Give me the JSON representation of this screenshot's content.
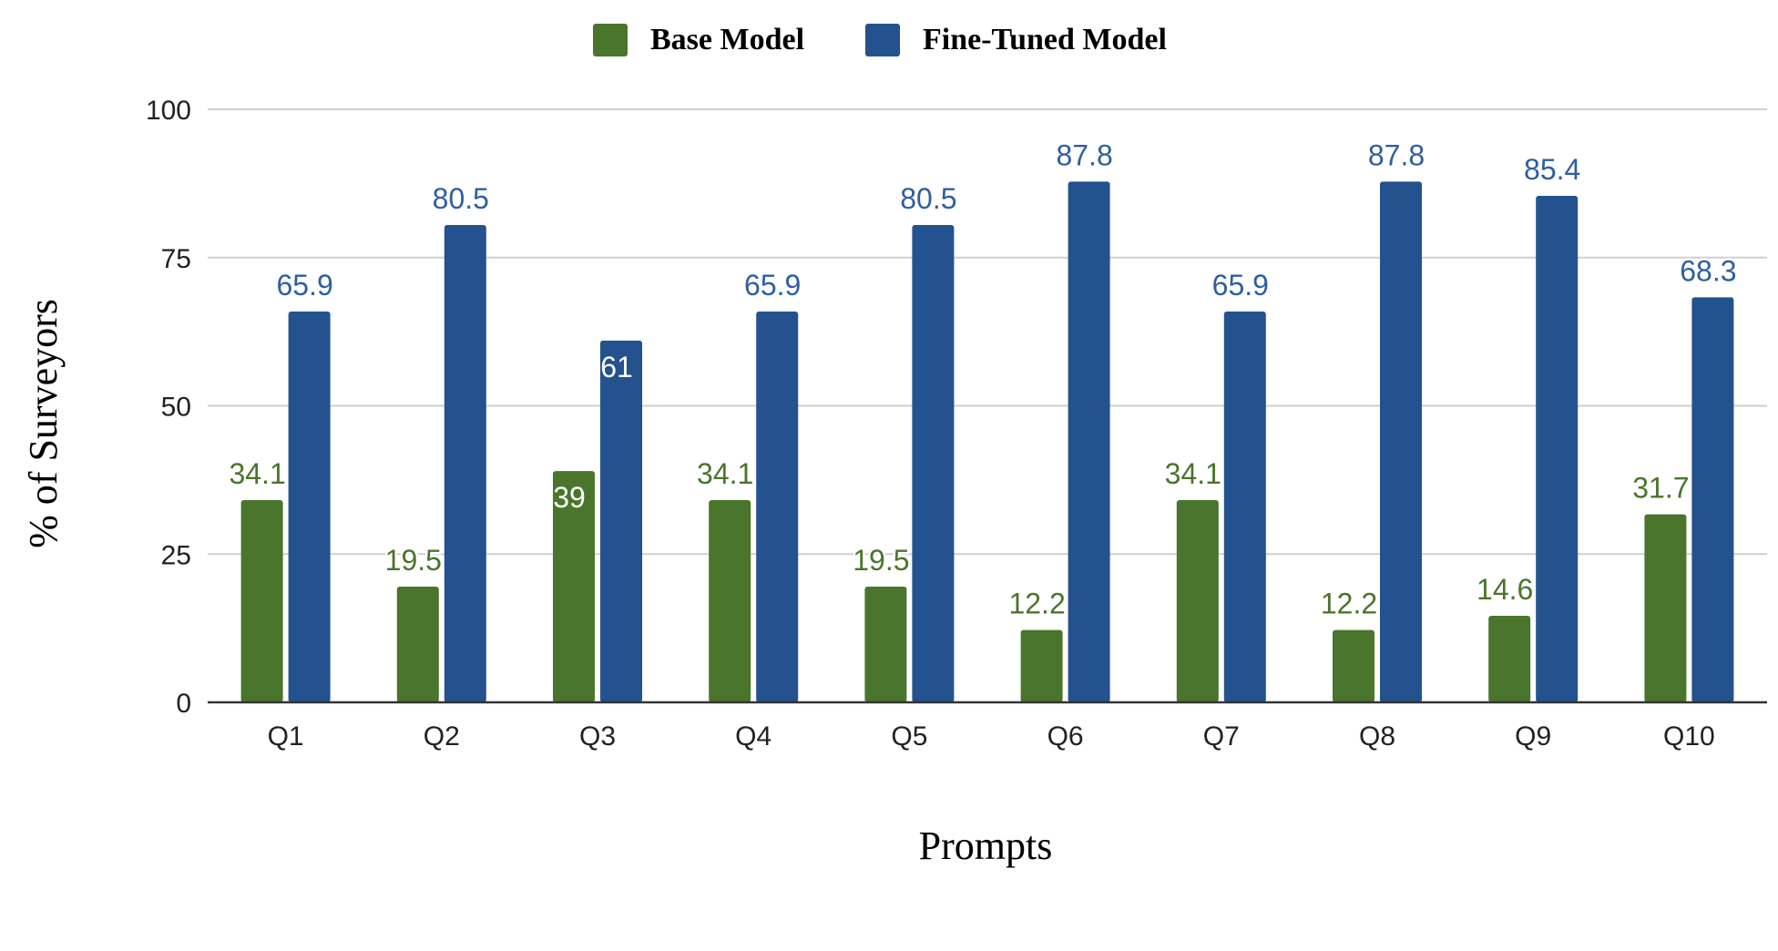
{
  "chart_data": {
    "type": "bar",
    "categories": [
      "Q1",
      "Q2",
      "Q3",
      "Q4",
      "Q5",
      "Q6",
      "Q7",
      "Q8",
      "Q9",
      "Q10"
    ],
    "series": [
      {
        "name": "Base Model",
        "color": "#4a752c",
        "label_color": "#4a752c",
        "values": [
          34.1,
          19.5,
          39,
          34.1,
          19.5,
          12.2,
          34.1,
          12.2,
          14.6,
          31.7
        ],
        "labels": [
          "34.1",
          "19.5",
          "39",
          "34.1",
          "19.5",
          "12.2",
          "34.1",
          "12.2",
          "14.6",
          "31.7"
        ]
      },
      {
        "name": "Fine-Tuned Model",
        "color": "#23528f",
        "label_color": "#2f5f9e",
        "values": [
          65.9,
          80.5,
          61,
          65.9,
          80.5,
          87.8,
          65.9,
          87.8,
          85.4,
          68.3
        ],
        "labels": [
          "65.9",
          "80.5",
          "61",
          "65.9",
          "80.5",
          "87.8",
          "65.9",
          "87.8",
          "85.4",
          "68.3"
        ]
      }
    ],
    "title": "",
    "xlabel": "Prompts",
    "ylabel": "% of Surveyors",
    "ylim": [
      0,
      100
    ],
    "yticks": [
      0,
      25,
      50,
      75,
      100
    ],
    "ytick_labels": [
      "0",
      "25",
      "50",
      "75",
      "100"
    ],
    "grid": true,
    "legend_position": "top-center"
  }
}
